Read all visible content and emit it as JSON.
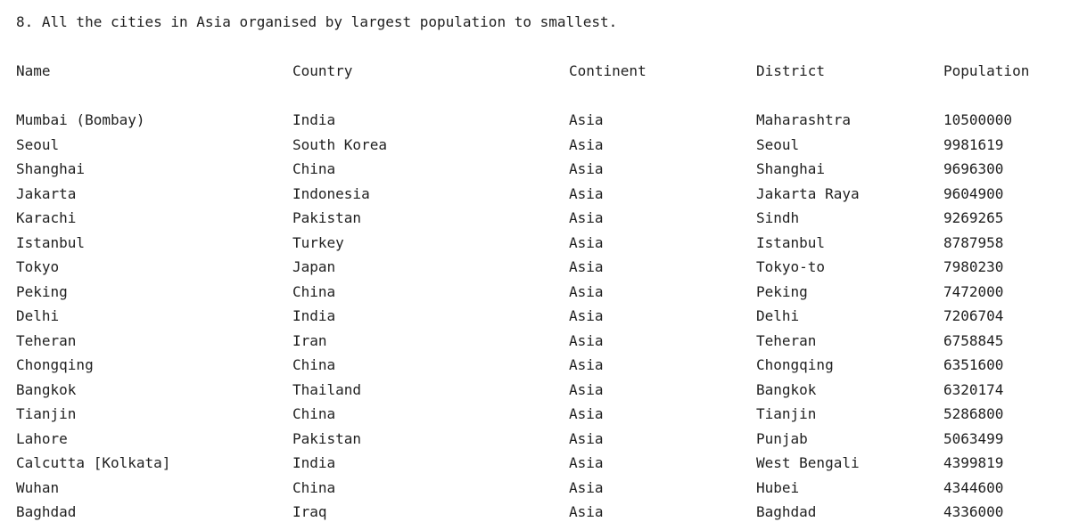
{
  "title": "8. All the cities in Asia organised by largest population to smallest.",
  "headers": {
    "name": "Name",
    "country": "Country",
    "continent": "Continent",
    "district": "District",
    "population": "Population"
  },
  "rows": [
    {
      "name": "Mumbai (Bombay)",
      "country": "India",
      "continent": "Asia",
      "district": "Maharashtra",
      "population": "10500000"
    },
    {
      "name": "Seoul",
      "country": "South Korea",
      "continent": "Asia",
      "district": "Seoul",
      "population": "9981619"
    },
    {
      "name": "Shanghai",
      "country": "China",
      "continent": "Asia",
      "district": "Shanghai",
      "population": "9696300"
    },
    {
      "name": "Jakarta",
      "country": "Indonesia",
      "continent": "Asia",
      "district": "Jakarta Raya",
      "population": "9604900"
    },
    {
      "name": "Karachi",
      "country": "Pakistan",
      "continent": "Asia",
      "district": "Sindh",
      "population": "9269265"
    },
    {
      "name": "Istanbul",
      "country": "Turkey",
      "continent": "Asia",
      "district": "Istanbul",
      "population": "8787958"
    },
    {
      "name": "Tokyo",
      "country": "Japan",
      "continent": "Asia",
      "district": "Tokyo-to",
      "population": "7980230"
    },
    {
      "name": "Peking",
      "country": "China",
      "continent": "Asia",
      "district": "Peking",
      "population": "7472000"
    },
    {
      "name": "Delhi",
      "country": "India",
      "continent": "Asia",
      "district": "Delhi",
      "population": "7206704"
    },
    {
      "name": "Teheran",
      "country": "Iran",
      "continent": "Asia",
      "district": "Teheran",
      "population": "6758845"
    },
    {
      "name": "Chongqing",
      "country": "China",
      "continent": "Asia",
      "district": "Chongqing",
      "population": "6351600"
    },
    {
      "name": "Bangkok",
      "country": "Thailand",
      "continent": "Asia",
      "district": "Bangkok",
      "population": "6320174"
    },
    {
      "name": "Tianjin",
      "country": "China",
      "continent": "Asia",
      "district": "Tianjin",
      "population": "5286800"
    },
    {
      "name": "Lahore",
      "country": "Pakistan",
      "continent": "Asia",
      "district": "Punjab",
      "population": "5063499"
    },
    {
      "name": "Calcutta [Kolkata]",
      "country": "India",
      "continent": "Asia",
      "district": "West Bengali",
      "population": "4399819"
    },
    {
      "name": "Wuhan",
      "country": "China",
      "continent": "Asia",
      "district": "Hubei",
      "population": "4344600"
    },
    {
      "name": "Baghdad",
      "country": "Iraq",
      "continent": "Asia",
      "district": "Baghdad",
      "population": "4336000"
    }
  ]
}
